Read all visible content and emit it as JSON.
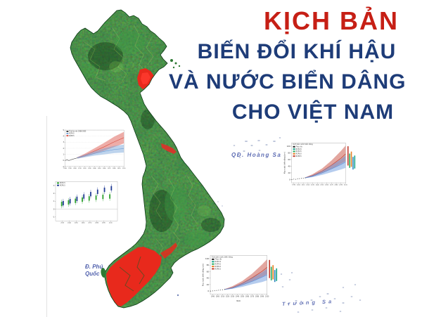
{
  "title": {
    "kich_ban": "KỊCH BẢN",
    "line2": "BIẾN ĐỔI KHÍ HẬU",
    "line3": "VÀ NƯỚC BIỂN DÂNG",
    "line4": "CHO VIỆT NAM",
    "kich_ban_color": "#c61f15",
    "body_color": "#1e3c78"
  },
  "map_labels": {
    "hoang_sa": "QĐ. Hoàng Sa",
    "phu_quoc_line1": "Đ. Phú",
    "phu_quoc_line2": "Quốc",
    "truong_sa": "Trường Sa",
    "label_color": "#3f51a5"
  },
  "map": {
    "land_color": "#1e5c26",
    "flood_color": "#e8291c",
    "island_color": "#2d7a33"
  },
  "chart_data": [
    {
      "type": "fan",
      "id": "temperature-projection-chart",
      "xlim": [
        1980,
        2100
      ],
      "ylim": [
        -1,
        5
      ],
      "xticks": [
        1980,
        1990,
        2000,
        2010,
        2020,
        2030,
        2040,
        2050,
        2060,
        2070,
        2080,
        2090,
        2100
      ],
      "yticks": [
        -1,
        0,
        1,
        2,
        3,
        4,
        5
      ],
      "grid": true,
      "legend": [
        {
          "label": "Thời kỳ nền 1986-2005",
          "color": "#333333"
        },
        {
          "label": "RCP4.5",
          "color": "#6f9fd8"
        },
        {
          "label": "RCP8.5",
          "color": "#d94a3d"
        }
      ],
      "series": [
        {
          "kind": "band",
          "name": "RCP8.5",
          "color": "#d94a3d",
          "x": [
            2005,
            2020,
            2040,
            2060,
            2080,
            2100
          ],
          "upper": [
            0.55,
            1.1,
            2.0,
            2.9,
            3.9,
            4.7
          ],
          "lower": [
            0.3,
            0.6,
            1.1,
            1.6,
            2.2,
            2.8
          ],
          "center": [
            0.42,
            0.85,
            1.55,
            2.25,
            3.05,
            3.75
          ]
        },
        {
          "kind": "band",
          "name": "RCP4.5",
          "color": "#6f9fd8",
          "x": [
            2005,
            2020,
            2040,
            2060,
            2080,
            2100
          ],
          "upper": [
            0.55,
            0.95,
            1.5,
            2.0,
            2.4,
            2.6
          ],
          "lower": [
            0.3,
            0.5,
            0.8,
            1.0,
            1.2,
            1.3
          ],
          "center": [
            0.42,
            0.72,
            1.15,
            1.5,
            1.8,
            1.95
          ]
        },
        {
          "kind": "line",
          "name": "Thực đo",
          "color": "#222222",
          "x": [
            1980,
            1984,
            1988,
            1992,
            1996,
            2000,
            2005
          ],
          "values": [
            0.0,
            0.1,
            -0.02,
            0.12,
            0.22,
            0.3,
            0.42
          ]
        }
      ]
    },
    {
      "type": "box",
      "id": "temperature-decadal-chart",
      "xlim": [
        2020,
        2110
      ],
      "ylim": [
        -1.5,
        3.5
      ],
      "xticks": [
        2030,
        2040,
        2050,
        2060,
        2070,
        2080,
        2090,
        2100
      ],
      "yticks": [
        -1,
        0,
        1,
        2,
        3
      ],
      "zero_line": 0,
      "legend": [
        {
          "label": "RCP4.5",
          "color": "#2ca02c"
        },
        {
          "label": "RCP8.5",
          "color": "#1f3a93"
        }
      ],
      "series": [
        {
          "kind": "boxes",
          "name": "RCP4.5",
          "color": "#2ca02c",
          "offset": -1.1,
          "box": 0.28,
          "whisker": 0.55,
          "x": [
            2030,
            2040,
            2050,
            2060,
            2070,
            2080,
            2090,
            2100
          ],
          "medians": [
            0.65,
            0.85,
            1.05,
            1.2,
            1.35,
            1.45,
            1.55,
            1.6
          ]
        },
        {
          "kind": "boxes",
          "name": "RCP8.5",
          "color": "#1f3a93",
          "offset": 1.1,
          "box": 0.28,
          "whisker": 0.55,
          "x": [
            2030,
            2040,
            2050,
            2060,
            2070,
            2080,
            2090,
            2100
          ],
          "medians": [
            0.75,
            1.0,
            1.3,
            1.6,
            1.9,
            2.2,
            2.45,
            2.65
          ]
        }
      ]
    },
    {
      "type": "fan",
      "id": "sea-level-rise-chart-east",
      "ylabel": "Mực nước biển dâng (cm)",
      "xlim": [
        1985,
        2100
      ],
      "ylim": [
        -10,
        110
      ],
      "xticks": [
        1990,
        2000,
        2010,
        2020,
        2030,
        2040,
        2050,
        2060,
        2070,
        2080,
        2090,
        2100
      ],
      "yticks": [
        0,
        20,
        40,
        60,
        80,
        100
      ],
      "legend": [
        {
          "label": "Kịch bản nước biển dâng",
          "color": null
        },
        {
          "label": "Thực đo",
          "color": "#222222"
        },
        {
          "label": "RCP2.6",
          "color": "#17a589"
        },
        {
          "label": "RCP4.5",
          "color": "#27ae60"
        },
        {
          "label": "RCP6.0",
          "color": "#e67e22"
        },
        {
          "label": "RCP8.5",
          "color": "#c0392b"
        }
      ],
      "side_bars": [
        {
          "name": "RCP8.5",
          "color": "#c0392b",
          "range": [
            42,
            100
          ]
        },
        {
          "name": "RCP4.5",
          "color": "#27ae60",
          "range": [
            35,
            78
          ]
        },
        {
          "name": "RCP6.0",
          "color": "#e67e22",
          "range": [
            38,
            84
          ]
        },
        {
          "name": "RCP2.6",
          "color": "#2e86c1",
          "range": [
            30,
            68
          ]
        },
        {
          "name": "TB",
          "color": "#17a589",
          "range": [
            33,
            72
          ]
        }
      ],
      "series": [
        {
          "kind": "band",
          "name": "RCP8.5",
          "color": "#c0392b",
          "x": [
            2014,
            2030,
            2050,
            2070,
            2090,
            2100
          ],
          "upper": [
            6,
            16,
            33,
            57,
            86,
            102
          ],
          "lower": [
            4,
            9,
            19,
            32,
            47,
            55
          ],
          "center": [
            5,
            12,
            25,
            43,
            64,
            77
          ]
        },
        {
          "kind": "band",
          "name": "RCP4.5",
          "color": "#5b8fd9",
          "x": [
            2014,
            2030,
            2050,
            2070,
            2090,
            2100
          ],
          "upper": [
            6,
            13,
            26,
            43,
            61,
            72
          ],
          "lower": [
            4,
            7,
            14,
            22,
            30,
            35
          ],
          "center": [
            5,
            10,
            20,
            32,
            45,
            53
          ]
        },
        {
          "kind": "dots",
          "name": "Thực đo",
          "color": "#222222",
          "x": [
            1986,
            1990,
            1994,
            1998,
            2002,
            2006,
            2010,
            2014
          ],
          "values": [
            0,
            1,
            0.5,
            2,
            2.5,
            3.5,
            4,
            5
          ]
        }
      ]
    },
    {
      "type": "fan",
      "id": "sea-level-rise-chart-south",
      "ylabel": "Mực nước biển dâng (cm)",
      "xlabel": "Năm",
      "xlim": [
        1985,
        2100
      ],
      "ylim": [
        -10,
        110
      ],
      "xticks": [
        1990,
        2000,
        2010,
        2020,
        2030,
        2040,
        2050,
        2060,
        2070,
        2080,
        2090,
        2100
      ],
      "yticks": [
        0,
        20,
        40,
        60,
        80,
        100
      ],
      "legend": [
        {
          "label": "Kịch bản nước biển dâng",
          "color": null
        },
        {
          "label": "Thực đo",
          "color": "#222222"
        },
        {
          "label": "RCP2.6",
          "color": "#17a589"
        },
        {
          "label": "RCP4.5",
          "color": "#27ae60"
        },
        {
          "label": "RCP6.0",
          "color": "#e67e22"
        },
        {
          "label": "RCP8.5",
          "color": "#c0392b"
        }
      ],
      "side_bars": [
        {
          "name": "RCP8.5",
          "color": "#c0392b",
          "range": [
            40,
            96
          ]
        },
        {
          "name": "RCP4.5",
          "color": "#27ae60",
          "range": [
            33,
            75
          ]
        },
        {
          "name": "RCP6.0",
          "color": "#e67e22",
          "range": [
            36,
            80
          ]
        },
        {
          "name": "RCP2.6",
          "color": "#2e86c1",
          "range": [
            28,
            65
          ]
        },
        {
          "name": "TB",
          "color": "#17a589",
          "range": [
            31,
            70
          ]
        }
      ],
      "series": [
        {
          "kind": "band",
          "name": "RCP8.5",
          "color": "#c0392b",
          "x": [
            2014,
            2030,
            2050,
            2070,
            2090,
            2100
          ],
          "upper": [
            6,
            15,
            31,
            54,
            82,
            98
          ],
          "lower": [
            4,
            8,
            18,
            30,
            44,
            52
          ],
          "center": [
            5,
            11,
            24,
            41,
            61,
            73
          ]
        },
        {
          "kind": "band",
          "name": "RCP4.5",
          "color": "#5b8fd9",
          "x": [
            2014,
            2030,
            2050,
            2070,
            2090,
            2100
          ],
          "upper": [
            6,
            12,
            25,
            41,
            58,
            69
          ],
          "lower": [
            4,
            7,
            13,
            21,
            28,
            33
          ],
          "center": [
            5,
            9,
            19,
            30,
            43,
            50
          ]
        },
        {
          "kind": "dots",
          "name": "Thực đo",
          "color": "#222222",
          "x": [
            1986,
            1990,
            1994,
            1998,
            2002,
            2006,
            2010,
            2014
          ],
          "values": [
            0,
            0.5,
            1,
            1.8,
            2.6,
            3.2,
            4,
            5
          ]
        }
      ]
    }
  ]
}
